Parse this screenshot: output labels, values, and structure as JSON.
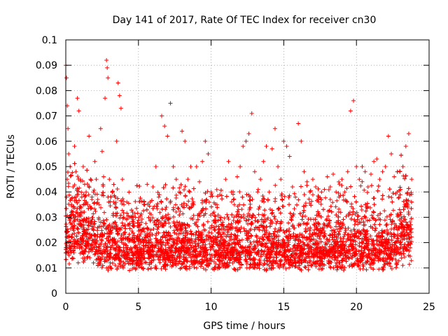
{
  "chart_data": {
    "type": "scatter",
    "title": "Day 141 of 2017, Rate Of TEC Index for receiver cn30",
    "xlabel": "GPS time / hours",
    "ylabel": "ROTI / TECUs",
    "xlim": [
      0,
      25
    ],
    "ylim": [
      0,
      0.1
    ],
    "x_ticks": [
      0,
      5,
      10,
      15,
      20,
      25
    ],
    "x_tick_labels": [
      "0",
      "5",
      "10",
      "15",
      "20",
      "25"
    ],
    "y_ticks": [
      0,
      0.01,
      0.02,
      0.03,
      0.04,
      0.05,
      0.06,
      0.07,
      0.08,
      0.09,
      0.1
    ],
    "y_tick_labels": [
      "0",
      "0.01",
      "0.02",
      "0.03",
      "0.04",
      "0.05",
      "0.06",
      "0.07",
      "0.08",
      "0.09",
      "0.1"
    ],
    "grid": true,
    "marker": "+",
    "color": "#ff0000",
    "series": [
      {
        "x": [
          0.0,
          0.05,
          0.1,
          0.15,
          0.2,
          0.1,
          0.05,
          0.3,
          0.4,
          0.5,
          0.6,
          0.7,
          0.8,
          0.9,
          1.0,
          1.1,
          1.2,
          1.3,
          1.4,
          1.5,
          1.6,
          1.7,
          1.8,
          1.9,
          2.0,
          2.1,
          2.2,
          2.3,
          2.4,
          2.5,
          2.6,
          2.7,
          2.8,
          2.85,
          2.9,
          3.0,
          3.1,
          3.2,
          3.3,
          3.4,
          3.5,
          3.6,
          3.7,
          3.8,
          3.9,
          4.0,
          4.2,
          4.4,
          4.6,
          4.8,
          5.0,
          5.2,
          5.4,
          5.6,
          5.8,
          6.0,
          6.2,
          6.4,
          6.6,
          6.8,
          7.0,
          7.2,
          7.4,
          7.6,
          7.8,
          8.0,
          8.2,
          8.4,
          8.6,
          8.8,
          9.0,
          9.2,
          9.4,
          9.6,
          9.8,
          10.0,
          10.2,
          10.4,
          10.6,
          10.8,
          11.0,
          11.2,
          11.4,
          11.6,
          11.8,
          12.0,
          12.2,
          12.4,
          12.6,
          12.8,
          13.0,
          13.2,
          13.4,
          13.6,
          13.8,
          14.0,
          14.2,
          14.4,
          14.6,
          14.8,
          15.0,
          15.2,
          15.4,
          15.6,
          15.8,
          16.0,
          16.2,
          16.4,
          16.6,
          16.8,
          17.0,
          17.2,
          17.4,
          17.6,
          17.8,
          18.0,
          18.2,
          18.4,
          18.6,
          18.8,
          19.0,
          19.2,
          19.4,
          19.6,
          19.8,
          20.0,
          20.2,
          20.4,
          20.6,
          20.8,
          21.0,
          21.2,
          21.4,
          21.6,
          21.8,
          22.0,
          22.2,
          22.4,
          22.6,
          22.8,
          23.0,
          23.2,
          23.4,
          23.6,
          23.8
        ],
        "y": [
          0.09,
          0.085,
          0.074,
          0.065,
          0.055,
          0.045,
          0.038,
          0.05,
          0.035,
          0.042,
          0.058,
          0.048,
          0.077,
          0.072,
          0.045,
          0.038,
          0.05,
          0.043,
          0.04,
          0.035,
          0.062,
          0.045,
          0.038,
          0.04,
          0.052,
          0.045,
          0.037,
          0.035,
          0.065,
          0.056,
          0.046,
          0.077,
          0.092,
          0.089,
          0.085,
          0.045,
          0.038,
          0.04,
          0.036,
          0.038,
          0.06,
          0.083,
          0.078,
          0.073,
          0.045,
          0.035,
          0.036,
          0.03,
          0.032,
          0.03,
          0.026,
          0.028,
          0.035,
          0.043,
          0.036,
          0.042,
          0.05,
          0.038,
          0.07,
          0.066,
          0.062,
          0.075,
          0.05,
          0.045,
          0.04,
          0.064,
          0.06,
          0.045,
          0.05,
          0.035,
          0.05,
          0.044,
          0.052,
          0.06,
          0.055,
          0.04,
          0.032,
          0.035,
          0.03,
          0.028,
          0.045,
          0.052,
          0.04,
          0.035,
          0.046,
          0.05,
          0.058,
          0.06,
          0.063,
          0.071,
          0.048,
          0.04,
          0.045,
          0.052,
          0.058,
          0.04,
          0.057,
          0.065,
          0.05,
          0.045,
          0.06,
          0.058,
          0.054,
          0.042,
          0.038,
          0.067,
          0.06,
          0.048,
          0.044,
          0.04,
          0.045,
          0.042,
          0.038,
          0.04,
          0.041,
          0.046,
          0.042,
          0.047,
          0.04,
          0.038,
          0.045,
          0.04,
          0.048,
          0.072,
          0.076,
          0.05,
          0.045,
          0.05,
          0.048,
          0.042,
          0.047,
          0.052,
          0.053,
          0.045,
          0.048,
          0.05,
          0.062,
          0.055,
          0.046,
          0.04,
          0.048,
          0.05,
          0.058,
          0.063,
          0.045
        ]
      }
    ]
  }
}
